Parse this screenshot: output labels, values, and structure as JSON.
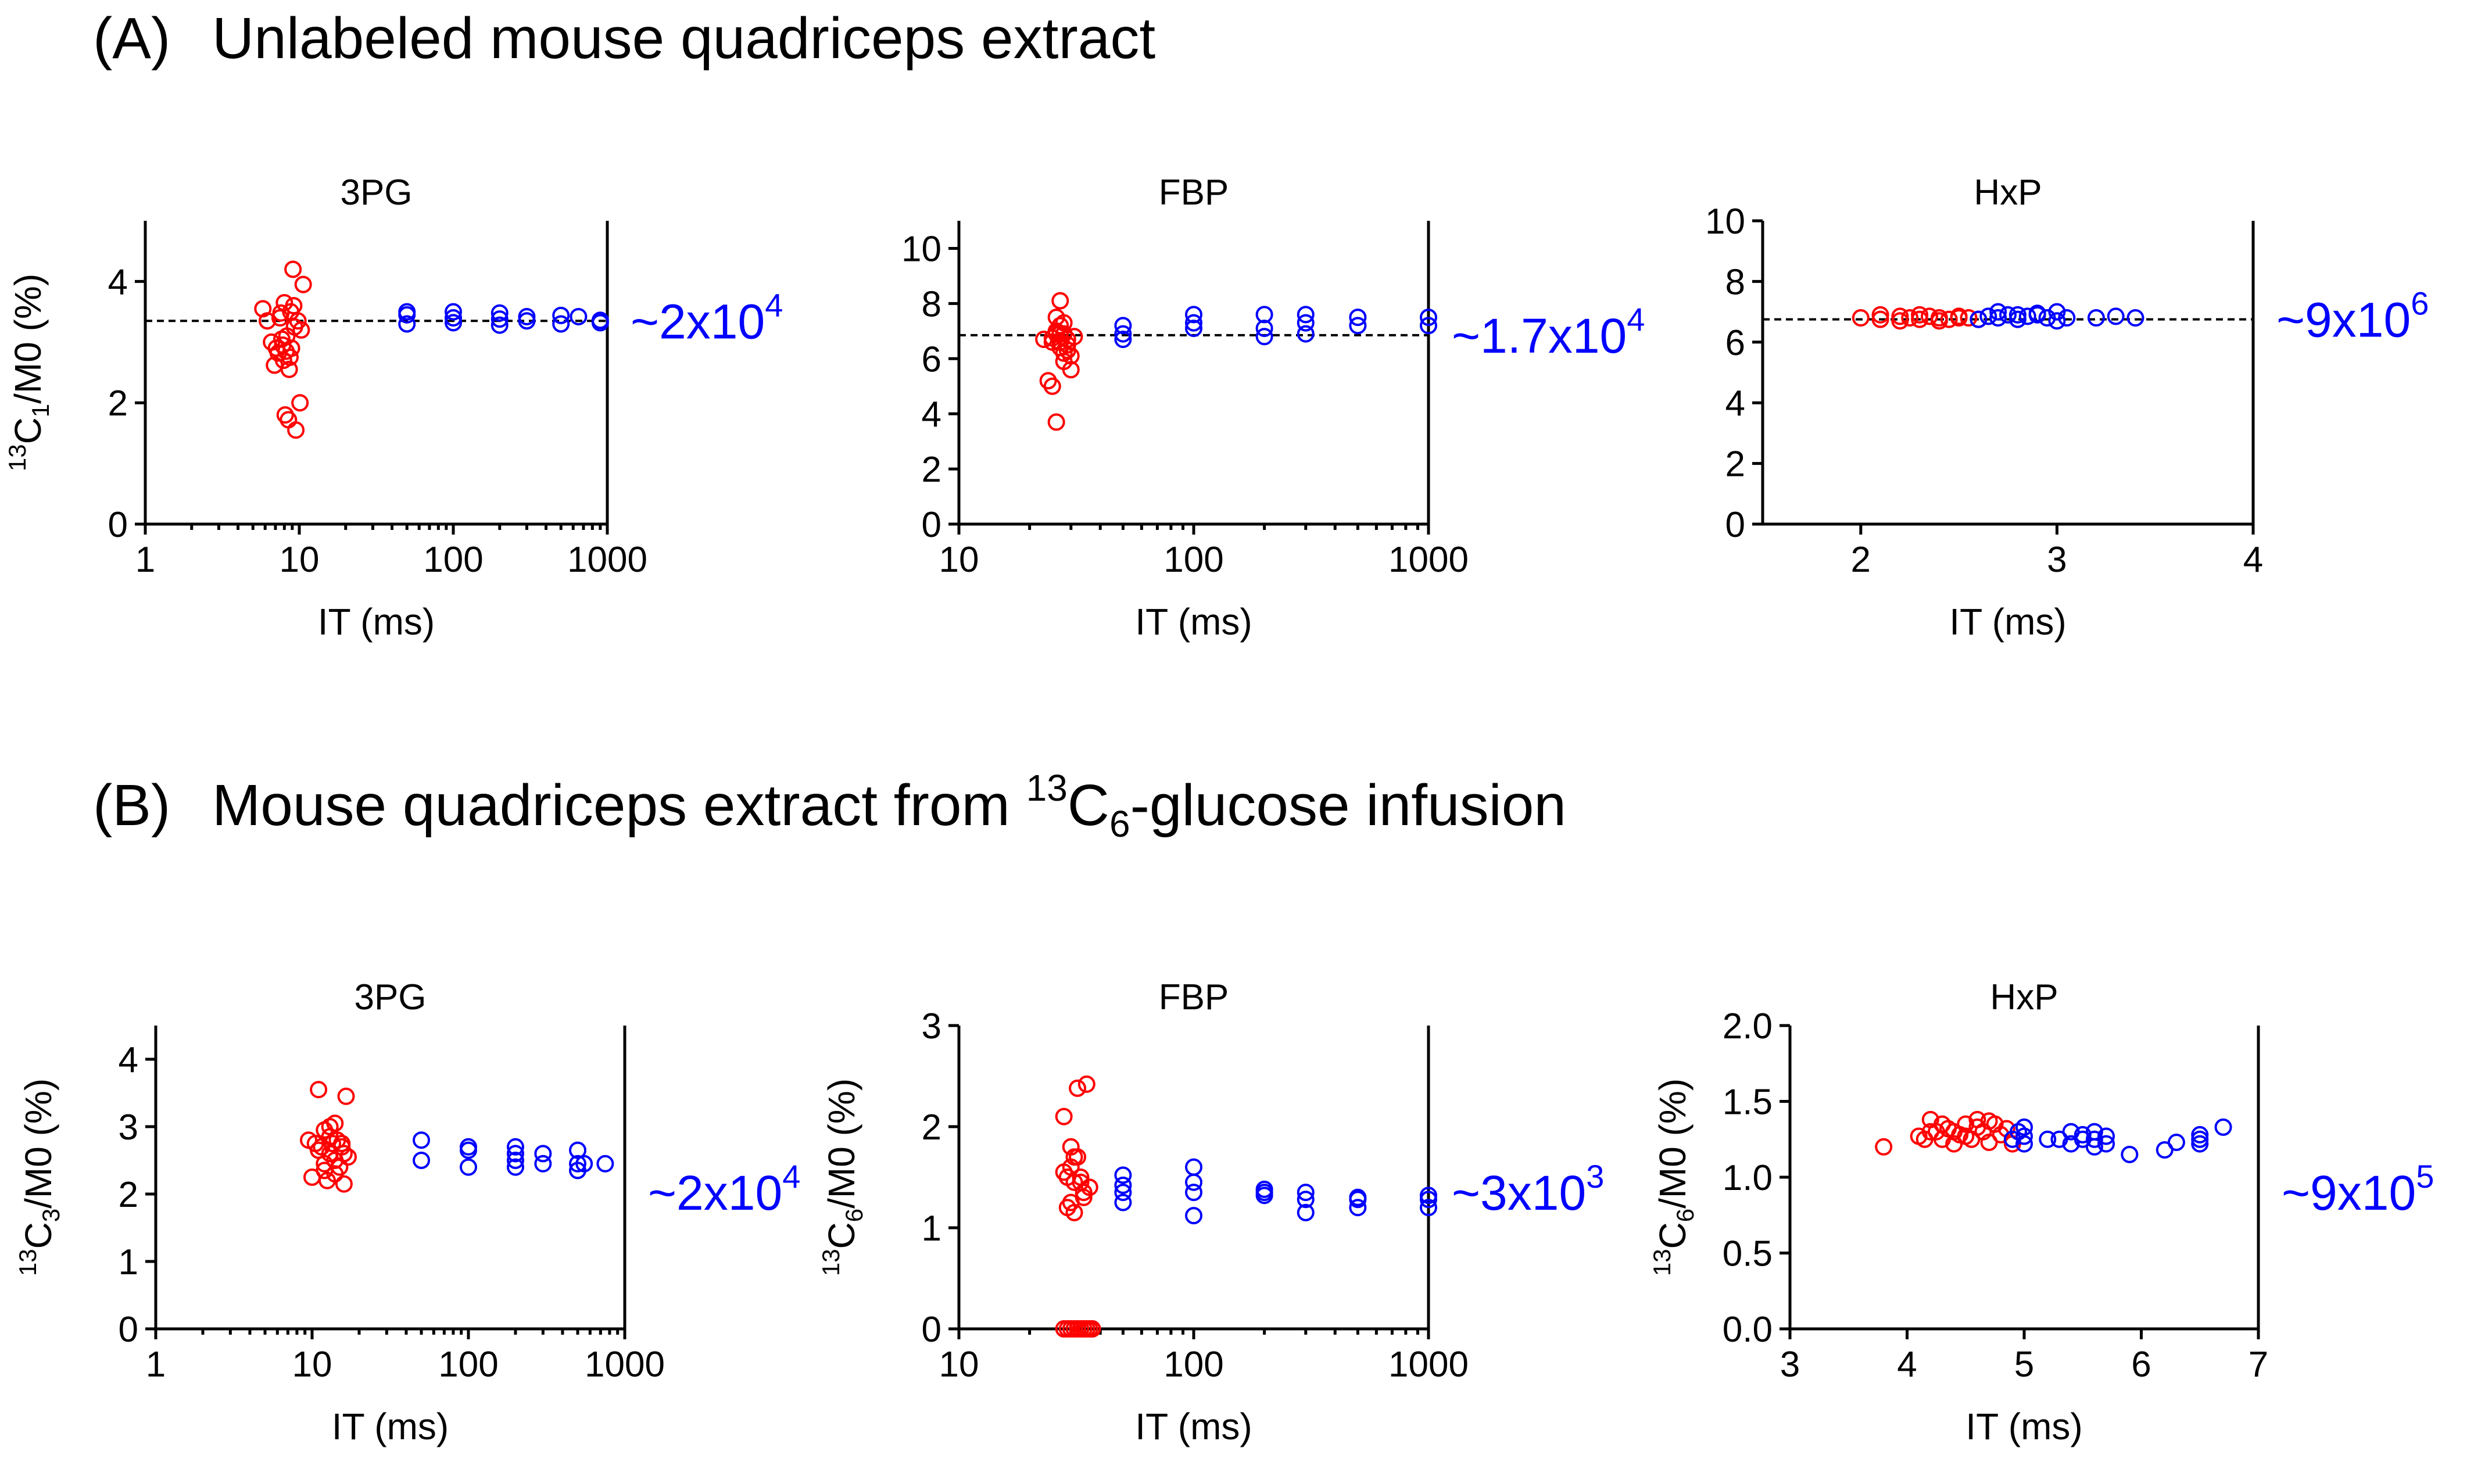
{
  "figure": {
    "sections": [
      {
        "label": "(A)",
        "title": "Unlabeled mouse quadriceps extract"
      },
      {
        "label": "(B)",
        "title_pre": "Mouse quadriceps extract from ",
        "title_sup": "13",
        "title_c": "C",
        "title_sub": "6",
        "title_post": "-glucose infusion"
      }
    ],
    "colors": {
      "group1": "#ff0000",
      "group2": "#0000ff",
      "annotation": "#0000ff",
      "axes": "#000000"
    }
  },
  "chart_data": [
    {
      "id": "A1",
      "type": "scatter",
      "title": "3PG",
      "xlabel": "IT (ms)",
      "xscale": "log",
      "xlim": [
        1,
        1000
      ],
      "xticks": [
        1,
        10,
        100,
        1000
      ],
      "xticklabels": [
        "1",
        "10",
        "100",
        "1000"
      ],
      "ylabel_sup": "13",
      "ylabel_main": "C",
      "ylabel_sub": "1",
      "ylabel_post": "/M0 (%)",
      "ylim": [
        0,
        5
      ],
      "yticks": [
        0,
        2,
        4
      ],
      "yticklabels": [
        "0",
        "2",
        "4"
      ],
      "ref_line": 3.35,
      "annotation": {
        "base": "~2x10",
        "exp": "4"
      },
      "series": [
        {
          "name": "red",
          "color": "#ff0000",
          "x": [
            5.8,
            6.2,
            6.6,
            6.9,
            7.1,
            7.3,
            7.5,
            7.6,
            7.8,
            8.0,
            8.1,
            8.3,
            8.5,
            8.6,
            8.8,
            8.9,
            9.1,
            9.3,
            9.5,
            9.8,
            10.1,
            10.6,
            7.7,
            8.7,
            9.2,
            8.2,
            7.9,
            10.3
          ],
          "y": [
            3.55,
            3.35,
            3.0,
            2.62,
            2.9,
            2.82,
            3.4,
            3.48,
            2.95,
            3.65,
            1.8,
            3.1,
            1.72,
            2.55,
            3.5,
            2.9,
            4.2,
            3.25,
            1.55,
            3.35,
            2.0,
            3.95,
            3.05,
            2.75,
            3.6,
            2.85,
            2.7,
            3.2
          ]
        },
        {
          "name": "blue",
          "color": "#0000ff",
          "x": [
            50,
            50,
            50,
            100,
            100,
            100,
            200,
            200,
            200,
            300,
            300,
            500,
            500,
            650,
            900,
            900
          ],
          "y": [
            3.3,
            3.45,
            3.5,
            3.32,
            3.4,
            3.5,
            3.28,
            3.38,
            3.48,
            3.35,
            3.42,
            3.3,
            3.44,
            3.42,
            3.32,
            3.36
          ]
        }
      ]
    },
    {
      "id": "A2",
      "type": "scatter",
      "title": "FBP",
      "xlabel": "IT (ms)",
      "xscale": "log",
      "xlim": [
        10,
        1000
      ],
      "xticks": [
        10,
        100,
        1000
      ],
      "xticklabels": [
        "10",
        "100",
        "1000"
      ],
      "ylabel_sup": "",
      "ylabel_main": "",
      "ylabel_sub": "",
      "ylabel_post": "",
      "ylim": [
        0,
        11
      ],
      "yticks": [
        0,
        2,
        4,
        6,
        8,
        10
      ],
      "yticklabels": [
        "0",
        "2",
        "4",
        "6",
        "8",
        "10"
      ],
      "ref_line": 6.85,
      "annotation": {
        "base": "~1.7x10",
        "exp": "4"
      },
      "series": [
        {
          "name": "red",
          "color": "#ff0000",
          "x": [
            23,
            24,
            25,
            25,
            26,
            26,
            27,
            27,
            27,
            28,
            28,
            28,
            29,
            29,
            30,
            30,
            31,
            25,
            26,
            27,
            28,
            29,
            26,
            27
          ],
          "y": [
            6.7,
            5.2,
            6.75,
            5.0,
            6.9,
            3.7,
            8.1,
            7.2,
            6.9,
            7.3,
            6.2,
            5.9,
            6.7,
            6.5,
            5.6,
            6.1,
            6.8,
            6.6,
            7.0,
            6.4,
            6.9,
            6.3,
            7.5,
            6.6
          ]
        },
        {
          "name": "blue",
          "color": "#0000ff",
          "x": [
            50,
            50,
            50,
            100,
            100,
            100,
            200,
            200,
            200,
            300,
            300,
            300,
            500,
            500,
            1000,
            1000
          ],
          "y": [
            6.7,
            6.9,
            7.2,
            7.3,
            7.6,
            7.1,
            6.8,
            7.1,
            7.6,
            6.9,
            7.3,
            7.6,
            7.2,
            7.5,
            7.2,
            7.5
          ]
        }
      ]
    },
    {
      "id": "A3",
      "type": "scatter",
      "title": "HxP",
      "xlabel": "IT (ms)",
      "xscale": "linear",
      "xlim": [
        1.5,
        4
      ],
      "xticks": [
        2,
        3,
        4
      ],
      "xticklabels": [
        "2",
        "3",
        "4"
      ],
      "ylabel_sup": "",
      "ylabel_main": "",
      "ylabel_sub": "",
      "ylabel_post": "",
      "ylim": [
        0,
        10
      ],
      "yticks": [
        0,
        2,
        4,
        6,
        8,
        10
      ],
      "yticklabels": [
        "0",
        "2",
        "4",
        "6",
        "8",
        "10"
      ],
      "ref_line": 6.75,
      "annotation": {
        "base": "~9x10",
        "exp": "6"
      },
      "series": [
        {
          "name": "red",
          "color": "#ff0000",
          "x": [
            2.0,
            2.1,
            2.2,
            2.25,
            2.3,
            2.35,
            2.4,
            2.45,
            2.5,
            2.55,
            2.6,
            2.1,
            2.2,
            2.3,
            2.4,
            2.5
          ],
          "y": [
            6.8,
            6.75,
            6.85,
            6.8,
            6.75,
            6.85,
            6.8,
            6.75,
            6.85,
            6.8,
            6.75,
            6.9,
            6.7,
            6.9,
            6.7,
            6.8
          ]
        },
        {
          "name": "blue",
          "color": "#0000ff",
          "x": [
            2.6,
            2.65,
            2.7,
            2.75,
            2.8,
            2.85,
            2.9,
            2.95,
            3.0,
            3.05,
            3.2,
            3.3,
            3.4,
            2.7,
            2.8,
            2.9,
            3.0
          ],
          "y": [
            6.75,
            6.85,
            6.8,
            6.9,
            6.75,
            6.85,
            6.9,
            6.8,
            6.7,
            6.8,
            6.8,
            6.85,
            6.8,
            7.0,
            6.9,
            6.95,
            7.0
          ]
        }
      ]
    },
    {
      "id": "B1",
      "type": "scatter",
      "title": "3PG",
      "xlabel": "IT (ms)",
      "xscale": "log",
      "xlim": [
        1,
        1000
      ],
      "xticks": [
        1,
        10,
        100,
        1000
      ],
      "xticklabels": [
        "1",
        "10",
        "100",
        "1000"
      ],
      "ylabel_sup": "13",
      "ylabel_main": "C",
      "ylabel_sub": "3",
      "ylabel_post": "/M0 (%)",
      "ylim": [
        0,
        4.5
      ],
      "yticks": [
        0,
        1,
        2,
        3,
        4
      ],
      "yticklabels": [
        "0",
        "1",
        "2",
        "3",
        "4"
      ],
      "ref_line": null,
      "annotation": {
        "base": "~2x10",
        "exp": "4"
      },
      "series": [
        {
          "name": "red",
          "color": "#ff0000",
          "x": [
            9.5,
            10,
            10.5,
            11,
            11.5,
            12,
            12,
            12.5,
            13,
            13,
            13.5,
            14,
            14,
            14.5,
            15,
            15.5,
            16,
            16.5,
            17,
            12,
            13,
            14,
            11,
            15.5,
            16
          ],
          "y": [
            2.8,
            2.25,
            2.75,
            3.55,
            2.7,
            2.35,
            2.95,
            2.2,
            2.6,
            3.0,
            2.75,
            2.5,
            3.05,
            2.8,
            2.4,
            2.75,
            2.15,
            3.45,
            2.55,
            2.45,
            2.85,
            2.3,
            2.65,
            2.7,
            2.6
          ]
        },
        {
          "name": "blue",
          "color": "#0000ff",
          "x": [
            50,
            50,
            100,
            100,
            100,
            200,
            200,
            200,
            200,
            300,
            300,
            500,
            500,
            500,
            550,
            750
          ],
          "y": [
            2.5,
            2.8,
            2.4,
            2.65,
            2.7,
            2.4,
            2.5,
            2.6,
            2.7,
            2.45,
            2.6,
            2.35,
            2.45,
            2.65,
            2.45,
            2.45
          ]
        }
      ]
    },
    {
      "id": "B2",
      "type": "scatter",
      "title": "FBP",
      "xlabel": "IT (ms)",
      "xscale": "log",
      "xlim": [
        10,
        1000
      ],
      "xticks": [
        10,
        100,
        1000
      ],
      "xticklabels": [
        "10",
        "100",
        "1000"
      ],
      "ylabel_sup": "13",
      "ylabel_main": "C",
      "ylabel_sub": "6",
      "ylabel_post": "/M0 (%)",
      "ylim": [
        0,
        3
      ],
      "yticks": [
        0,
        1,
        2,
        3
      ],
      "yticklabels": [
        "0",
        "1",
        "2",
        "3"
      ],
      "ref_line": null,
      "annotation": {
        "base": "~3x10",
        "exp": "3"
      },
      "series": [
        {
          "name": "red",
          "color": "#ff0000",
          "x": [
            28,
            29,
            30,
            31,
            32,
            33,
            34,
            35,
            36,
            28,
            29,
            30,
            31,
            32,
            33,
            34,
            28,
            29,
            30,
            31,
            32,
            33,
            34,
            35,
            36,
            37,
            31,
            30
          ],
          "y": [
            2.1,
            1.5,
            1.8,
            1.15,
            1.7,
            1.45,
            1.35,
            2.42,
            1.4,
            1.55,
            1.2,
            1.6,
            1.7,
            2.38,
            1.5,
            1.3,
            0,
            0,
            0,
            0,
            0,
            0,
            0,
            0,
            0,
            0,
            1.45,
            1.25
          ]
        },
        {
          "name": "blue",
          "color": "#0000ff",
          "x": [
            50,
            50,
            50,
            50,
            100,
            100,
            100,
            100,
            200,
            200,
            200,
            300,
            300,
            300,
            500,
            500,
            500,
            1000,
            1000,
            1000
          ],
          "y": [
            1.25,
            1.35,
            1.42,
            1.52,
            1.12,
            1.35,
            1.45,
            1.6,
            1.32,
            1.35,
            1.38,
            1.15,
            1.28,
            1.35,
            1.2,
            1.28,
            1.3,
            1.2,
            1.28,
            1.32
          ]
        }
      ]
    },
    {
      "id": "B3",
      "type": "scatter",
      "title": "HxP",
      "xlabel": "IT (ms)",
      "xscale": "linear",
      "xlim": [
        3,
        7
      ],
      "xticks": [
        3,
        4,
        5,
        6,
        7
      ],
      "xticklabels": [
        "3",
        "4",
        "5",
        "6",
        "7"
      ],
      "ylabel_sup": "13",
      "ylabel_main": "C",
      "ylabel_sub": "6",
      "ylabel_post": "/M0 (%)",
      "ylim": [
        0,
        2
      ],
      "yticks": [
        0,
        0.5,
        1.0,
        1.5,
        2.0
      ],
      "yticklabels": [
        "0.0",
        "0.5",
        "1.0",
        "1.5",
        "2.0"
      ],
      "ref_line": null,
      "annotation": {
        "base": "~9x10",
        "exp": "5"
      },
      "series": [
        {
          "name": "red",
          "color": "#ff0000",
          "x": [
            3.8,
            4.1,
            4.15,
            4.2,
            4.25,
            4.3,
            4.35,
            4.4,
            4.45,
            4.5,
            4.55,
            4.6,
            4.65,
            4.7,
            4.75,
            4.8,
            4.85,
            4.9,
            4.2,
            4.3,
            4.5,
            4.6,
            4.7,
            4.4
          ],
          "y": [
            1.2,
            1.27,
            1.25,
            1.38,
            1.3,
            1.25,
            1.32,
            1.22,
            1.28,
            1.35,
            1.25,
            1.38,
            1.3,
            1.23,
            1.35,
            1.28,
            1.32,
            1.22,
            1.3,
            1.35,
            1.27,
            1.33,
            1.37,
            1.3
          ]
        },
        {
          "name": "blue",
          "color": "#0000ff",
          "x": [
            5.0,
            5.0,
            5.0,
            5.2,
            5.3,
            5.4,
            5.4,
            5.5,
            5.5,
            5.6,
            5.6,
            5.6,
            5.7,
            5.7,
            5.9,
            6.2,
            6.3,
            6.5,
            6.5,
            6.5,
            6.7,
            4.9,
            4.95
          ],
          "y": [
            1.22,
            1.27,
            1.33,
            1.25,
            1.25,
            1.22,
            1.3,
            1.25,
            1.28,
            1.2,
            1.25,
            1.3,
            1.22,
            1.27,
            1.15,
            1.18,
            1.23,
            1.22,
            1.25,
            1.28,
            1.33,
            1.25,
            1.3
          ]
        }
      ]
    }
  ]
}
